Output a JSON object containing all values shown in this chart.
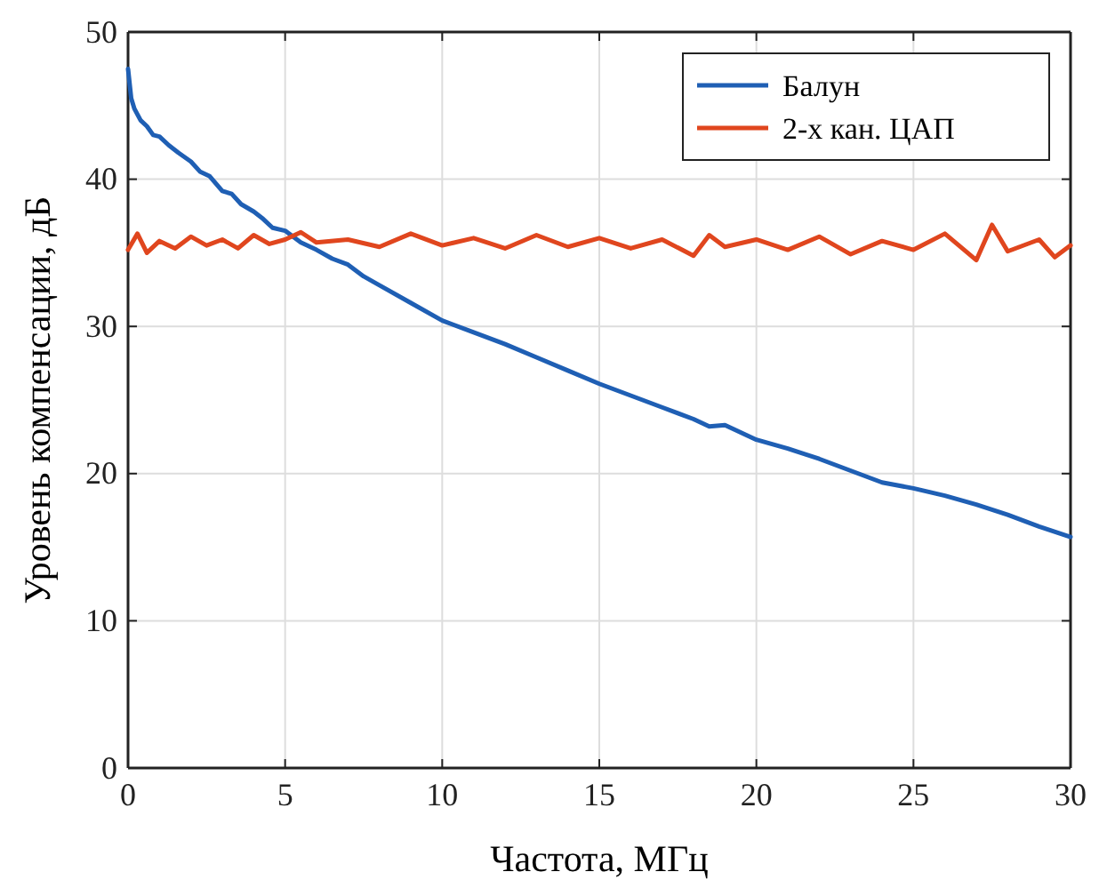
{
  "chart_data": {
    "type": "line",
    "xlabel": "Частота, МГц",
    "ylabel": "Уровень компенсации, дБ",
    "xlim": [
      0,
      30
    ],
    "ylim": [
      0,
      50
    ],
    "xticks": [
      0,
      5,
      10,
      15,
      20,
      25,
      30
    ],
    "yticks": [
      0,
      10,
      20,
      30,
      40,
      50
    ],
    "grid": true,
    "legend": "top right",
    "series": [
      {
        "name": "Балун",
        "color": "#1f5fb4",
        "x": [
          0,
          0.1,
          0.2,
          0.4,
          0.6,
          0.8,
          1,
          1.3,
          1.6,
          2,
          2.3,
          2.6,
          3,
          3.3,
          3.6,
          4,
          4.3,
          4.6,
          5,
          5.5,
          6,
          6.5,
          7,
          7.5,
          8,
          9,
          10,
          11,
          12,
          13,
          14,
          15,
          16,
          17,
          18,
          18.5,
          19,
          20,
          21,
          22,
          23,
          24,
          25,
          26,
          27,
          28,
          29,
          30
        ],
        "values": [
          47.5,
          45.5,
          44.8,
          44,
          43.6,
          43,
          42.9,
          42.3,
          41.8,
          41.2,
          40.5,
          40.2,
          39.2,
          39,
          38.3,
          37.8,
          37.3,
          36.7,
          36.5,
          35.7,
          35.2,
          34.6,
          34.2,
          33.4,
          32.8,
          31.6,
          30.4,
          29.6,
          28.8,
          27.9,
          27,
          26.1,
          25.3,
          24.5,
          23.7,
          23.2,
          23.3,
          22.3,
          21.7,
          21,
          20.2,
          19.4,
          19,
          18.5,
          17.9,
          17.2,
          16.4,
          15.7
        ]
      },
      {
        "name": "2-х кан. ЦАП",
        "color": "#e0461e",
        "x": [
          0,
          0.3,
          0.6,
          1,
          1.5,
          2,
          2.5,
          3,
          3.5,
          4,
          4.5,
          5,
          5.5,
          6,
          7,
          8,
          9,
          10,
          11,
          12,
          13,
          14,
          15,
          16,
          17,
          18,
          18.5,
          19,
          20,
          21,
          22,
          23,
          24,
          25,
          26,
          27,
          27.5,
          28,
          29,
          29.5,
          30
        ],
        "values": [
          35.2,
          36.3,
          35,
          35.8,
          35.3,
          36.1,
          35.5,
          35.9,
          35.3,
          36.2,
          35.6,
          35.9,
          36.4,
          35.7,
          35.9,
          35.4,
          36.3,
          35.5,
          36,
          35.3,
          36.2,
          35.4,
          36,
          35.3,
          35.9,
          34.8,
          36.2,
          35.4,
          35.9,
          35.2,
          36.1,
          34.9,
          35.8,
          35.2,
          36.3,
          34.5,
          36.9,
          35.1,
          35.9,
          34.7,
          35.5
        ]
      }
    ]
  }
}
